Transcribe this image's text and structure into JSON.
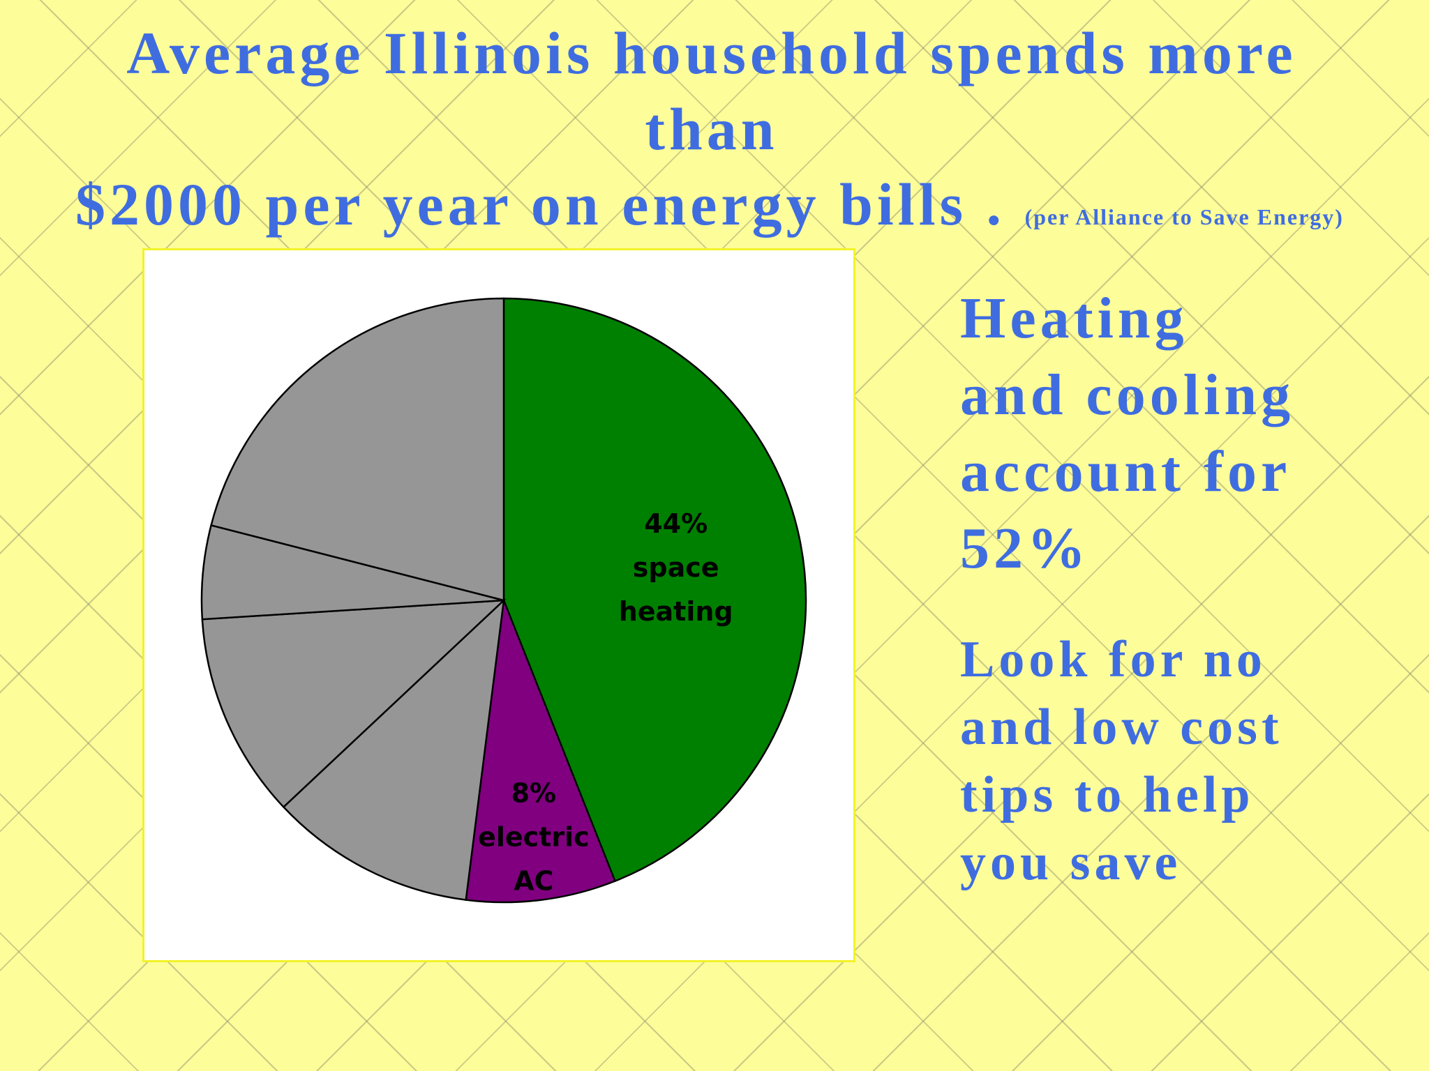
{
  "title": {
    "line1": "Average Illinois household spends more",
    "line2": "than",
    "line3": "$2000 per year on energy bills .",
    "source": "(per Alliance to Save Energy)"
  },
  "side_text": {
    "block1": [
      "Heating",
      "and cooling",
      "account for",
      "52%"
    ],
    "block2": [
      "Look for no",
      "and low cost",
      "tips to help",
      "you save"
    ]
  },
  "chart_data": {
    "type": "pie",
    "start": "12 o'clock",
    "direction": "clockwise",
    "slices": [
      {
        "value": 44,
        "color": "#008000",
        "label": [
          "44%",
          "space",
          "heating"
        ]
      },
      {
        "value": 8,
        "color": "#800080",
        "label": [
          "8%",
          "electric",
          "AC"
        ]
      },
      {
        "value": 11,
        "color": "#969696",
        "label": []
      },
      {
        "value": 11,
        "color": "#969696",
        "label": []
      },
      {
        "value": 5,
        "color": "#969696",
        "label": []
      },
      {
        "value": 21,
        "color": "#969696",
        "label": []
      }
    ],
    "edge_color": "#000000"
  }
}
